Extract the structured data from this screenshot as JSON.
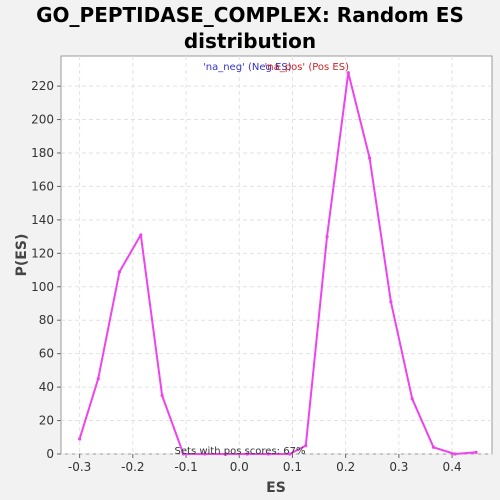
{
  "chart_data": {
    "type": "line",
    "title": "GO_PEPTIDASE_COMPLEX: Random ES distribution",
    "xlabel": "ES",
    "ylabel": "P(ES)",
    "xlim": [
      -0.335,
      0.475
    ],
    "ylim": [
      0,
      238
    ],
    "x_ticks": [
      -0.3,
      -0.2,
      -0.1,
      0.0,
      0.1,
      0.2,
      0.3,
      0.4
    ],
    "x_tick_labels": [
      "-0.3",
      "-0.2",
      "-0.1",
      "0.0",
      "0.1",
      "0.2",
      "0.3",
      "0.4"
    ],
    "y_ticks": [
      0,
      20,
      40,
      60,
      80,
      100,
      120,
      140,
      160,
      180,
      200,
      220
    ],
    "y_tick_labels": [
      "0",
      "20",
      "40",
      "60",
      "80",
      "100",
      "120",
      "140",
      "160",
      "180",
      "200",
      "220"
    ],
    "grid": true,
    "legend": {
      "placement": "top-center",
      "entries": [
        {
          "label": "'na_neg' (Neg ES)",
          "color": "#3333cc"
        },
        {
          "label": "'na_pos' (Pos ES)",
          "color": "#cc2222"
        }
      ]
    },
    "annotation": "Sets with pos scores: 67%",
    "series": [
      {
        "color": "#ee44ee",
        "x": [
          -0.3,
          -0.265,
          -0.225,
          -0.185,
          -0.145,
          -0.105,
          -0.065,
          -0.025,
          0.015,
          0.055,
          0.095,
          0.125,
          0.165,
          0.205,
          0.245,
          0.285,
          0.325,
          0.365,
          0.405,
          0.445
        ],
        "y": [
          9,
          45,
          109,
          131,
          35,
          0,
          0,
          0,
          0,
          0,
          0,
          5,
          130,
          228,
          177,
          91,
          33,
          4,
          0,
          1
        ]
      }
    ]
  }
}
